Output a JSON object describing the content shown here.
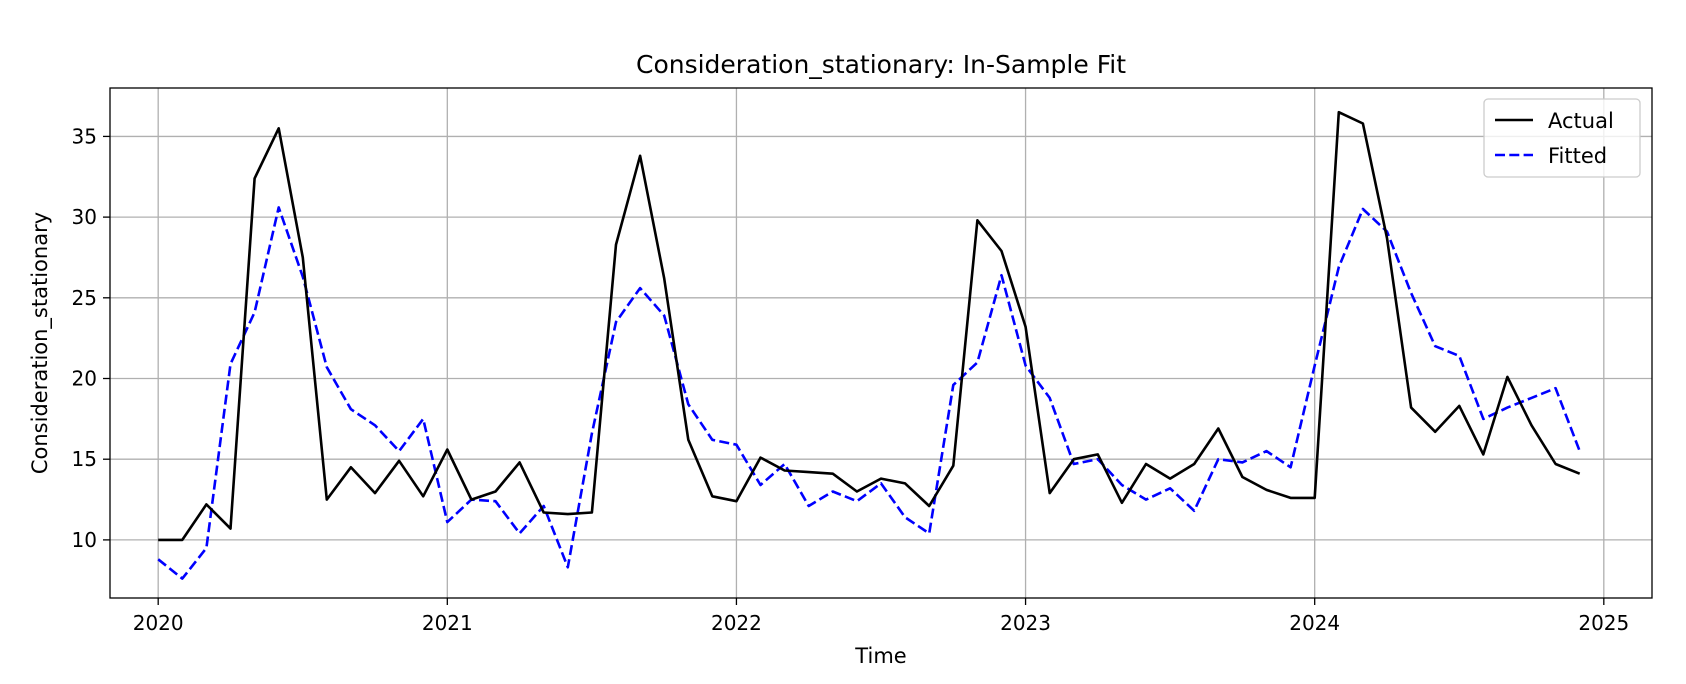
{
  "chart_data": {
    "type": "line",
    "title": "Consideration_stationary: In-Sample Fit",
    "xlabel": "Time",
    "ylabel": "Consideration_stationary",
    "x_ticks": [
      "2020",
      "2021",
      "2022",
      "2023",
      "2024",
      "2025"
    ],
    "y_ticks": [
      10,
      15,
      20,
      25,
      30,
      35
    ],
    "x_range": [
      "2019-11",
      "2025-03"
    ],
    "ylim": [
      6.4,
      38
    ],
    "grid": true,
    "legend_position": "upper right",
    "x": [
      "2020-01",
      "2020-02",
      "2020-03",
      "2020-04",
      "2020-05",
      "2020-06",
      "2020-07",
      "2020-08",
      "2020-09",
      "2020-10",
      "2020-11",
      "2020-12",
      "2021-01",
      "2021-02",
      "2021-03",
      "2021-04",
      "2021-05",
      "2021-06",
      "2021-07",
      "2021-08",
      "2021-09",
      "2021-10",
      "2021-11",
      "2021-12",
      "2022-01",
      "2022-02",
      "2022-03",
      "2022-04",
      "2022-05",
      "2022-06",
      "2022-07",
      "2022-08",
      "2022-09",
      "2022-10",
      "2022-11",
      "2022-12",
      "2023-01",
      "2023-02",
      "2023-03",
      "2023-04",
      "2023-05",
      "2023-06",
      "2023-07",
      "2023-08",
      "2023-09",
      "2023-10",
      "2023-11",
      "2023-12",
      "2024-01",
      "2024-02",
      "2024-03",
      "2024-04",
      "2024-05",
      "2024-06",
      "2024-07",
      "2024-08",
      "2024-09",
      "2024-10",
      "2024-11",
      "2024-12"
    ],
    "series": [
      {
        "name": "Actual",
        "color": "#000000",
        "dash": "solid",
        "values": [
          10.0,
          10.0,
          12.2,
          10.7,
          32.4,
          35.5,
          27.5,
          12.5,
          14.5,
          12.9,
          14.9,
          12.7,
          15.6,
          12.5,
          13.0,
          14.8,
          11.7,
          11.6,
          11.7,
          28.3,
          33.8,
          26.2,
          16.2,
          12.7,
          12.4,
          15.1,
          14.3,
          14.2,
          14.1,
          13.0,
          13.8,
          13.5,
          12.1,
          14.6,
          29.8,
          27.9,
          23.2,
          12.9,
          15.0,
          15.3,
          12.3,
          14.7,
          13.8,
          14.7,
          16.9,
          13.9,
          13.1,
          12.6,
          12.6,
          36.5,
          35.8,
          28.7,
          18.2,
          16.7,
          18.3,
          15.3,
          20.1,
          17.1,
          14.7,
          14.1
        ]
      },
      {
        "name": "Fitted",
        "color": "#0000ff",
        "dash": "dashed",
        "values": [
          8.8,
          7.6,
          9.5,
          20.9,
          24.1,
          30.6,
          26.3,
          20.7,
          18.1,
          17.1,
          15.5,
          17.5,
          11.1,
          12.5,
          12.4,
          10.4,
          12.1,
          8.3,
          16.6,
          23.5,
          25.6,
          23.9,
          18.4,
          16.2,
          15.9,
          13.4,
          14.7,
          12.1,
          13.0,
          12.4,
          13.5,
          11.4,
          10.4,
          19.6,
          21.0,
          26.4,
          20.8,
          18.8,
          14.7,
          15.0,
          13.4,
          12.5,
          13.2,
          11.8,
          15.0,
          14.8,
          15.5,
          14.5,
          20.8,
          26.9,
          30.5,
          29.1,
          25.3,
          22.0,
          21.4,
          17.5,
          18.2,
          18.8,
          19.4,
          15.5
        ]
      }
    ]
  }
}
